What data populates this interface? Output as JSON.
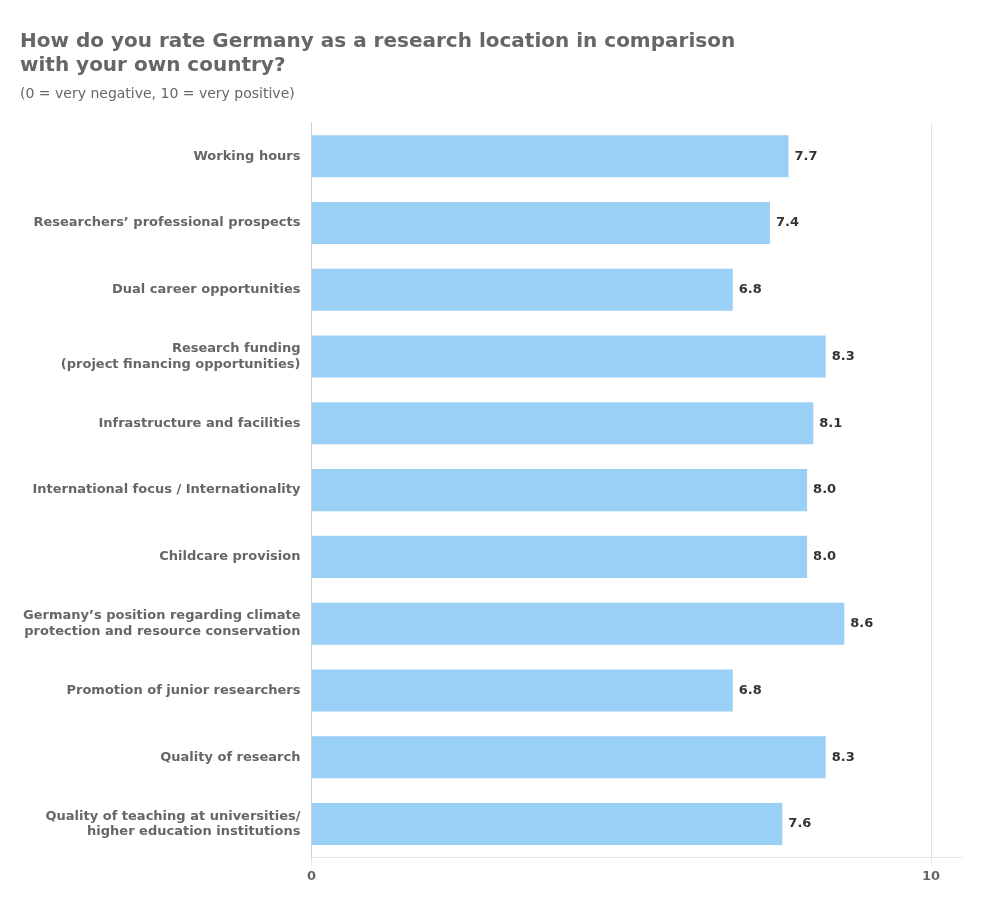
{
  "chart_data": {
    "type": "bar",
    "orientation": "horizontal",
    "title": "How do you rate Germany as a research location in comparison\nwith your own country?",
    "subtitle": "(0 = very negative, 10 = very positive)",
    "categories": [
      "Working hours",
      "Researchers’ professional prospects",
      "Dual career opportunities",
      "Research funding\n(project financing opportunities)",
      "Infrastructure and facilities",
      "International focus / Internationality",
      "Childcare provision",
      "Germany’s position regarding climate\nprotection and resource conservation",
      "Promotion of junior researchers",
      "Quality of research",
      "Quality of teaching at universities/\nhigher education institutions"
    ],
    "values": [
      7.7,
      7.4,
      6.8,
      8.3,
      8.1,
      8.0,
      8.0,
      8.6,
      6.8,
      8.3,
      7.6
    ],
    "value_labels": [
      "7.7",
      "7.4",
      "6.8",
      "8.3",
      "8.1",
      "8.0",
      "8.0",
      "8.6",
      "6.8",
      "8.3",
      "7.6"
    ],
    "data_labels": true,
    "xlim": [
      0,
      10.5
    ],
    "xticks": [
      0,
      10
    ],
    "grid": true
  }
}
